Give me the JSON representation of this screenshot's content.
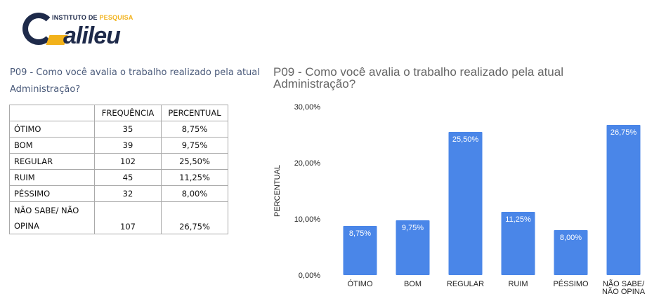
{
  "logo": {
    "tagline_part1": "INSTITUTO DE ",
    "tagline_part2": "PESQUISA",
    "wordmark": "alileu",
    "colors": {
      "navy": "#1e2a4a",
      "gold": "#f2b21b"
    }
  },
  "question": {
    "line1": "P09 -  Como você avalia o trabalho realizado pela atual",
    "line2": "Administração?"
  },
  "table": {
    "headers": {
      "freq": "FREQUÊNCIA",
      "pct": "PERCENTUAL"
    },
    "rows": [
      {
        "label": "ÓTIMO",
        "freq": "35",
        "pct": "8,75%"
      },
      {
        "label": "BOM",
        "freq": "39",
        "pct": "9,75%"
      },
      {
        "label": "REGULAR",
        "freq": "102",
        "pct": "25,50%"
      },
      {
        "label": "RUIM",
        "freq": "45",
        "pct": "11,25%"
      },
      {
        "label": "PÉSSIMO",
        "freq": "32",
        "pct": "8,00%"
      },
      {
        "label_line1": "NÃO SABE/ NÃO",
        "label_line2": "OPINA",
        "freq": "107",
        "pct": "26,75%"
      }
    ]
  },
  "chart_data": {
    "type": "bar",
    "title_line1": "P09 -  Como você avalia o trabalho realizado pela atual",
    "title_line2": "Administração?",
    "ylabel": "PERCENTUAL",
    "xlabel": "",
    "ylim": [
      0,
      30
    ],
    "yticks": [
      0,
      10,
      20,
      30
    ],
    "ytick_labels": [
      "0,00%",
      "10,00%",
      "20,00%",
      "30,00%"
    ],
    "categories": [
      [
        "ÓTIMO"
      ],
      [
        "BOM"
      ],
      [
        "REGULAR"
      ],
      [
        "RUIM"
      ],
      [
        "PÉSSIMO"
      ],
      [
        "NÃO SABE/",
        "NÃO OPINA"
      ]
    ],
    "values": [
      8.75,
      9.75,
      25.5,
      11.25,
      8.0,
      26.75
    ],
    "data_labels": [
      "8,75%",
      "9,75%",
      "25,50%",
      "11,25%",
      "8,00%",
      "26,75%"
    ],
    "bar_color": "#4a86e8",
    "grid": false,
    "legend": "none"
  }
}
